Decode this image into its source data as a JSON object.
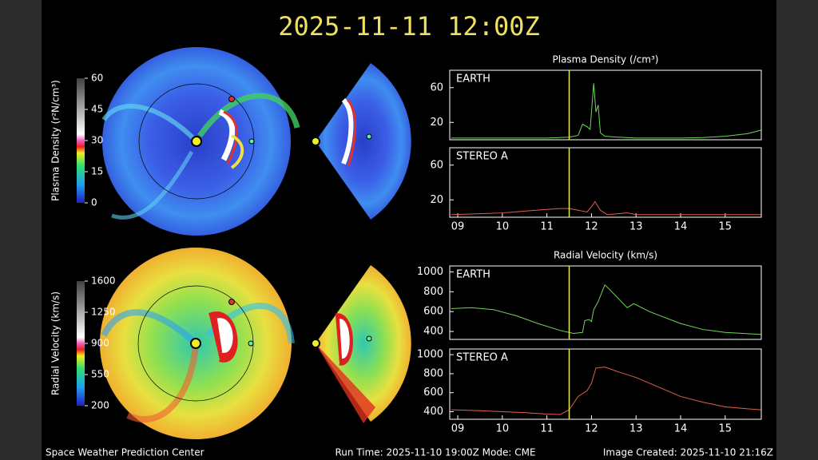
{
  "title": "2025-11-11 12:00Z",
  "footer": {
    "left": "Space Weather Prediction Center",
    "center": "Run Time: 2025-11-10 19:00Z  Mode: CME",
    "right": "Image Created: 2025-11-10 21:16Z"
  },
  "colorbars": [
    {
      "label": "Plasma Density (r²N/cm³)",
      "lim": [
        0,
        60
      ],
      "ticks": [
        0,
        15,
        30,
        45,
        60
      ]
    },
    {
      "label": "Radial Velocity (km/s)",
      "lim": [
        200,
        1600
      ],
      "ticks": [
        200,
        550,
        900,
        1250,
        1600
      ]
    }
  ],
  "chart_data": [
    {
      "type": "line",
      "title": "Plasma Density (/cm³)",
      "xlim": [
        8.82,
        15.81
      ],
      "ylim": [
        0,
        80
      ],
      "yticks": [
        20,
        60
      ],
      "marker_x": 11.5,
      "marker_color": "#e8e84a",
      "series": [
        {
          "name": "EARTH",
          "color": "#6fd65a",
          "x": [
            8.85,
            9.5,
            10,
            10.5,
            11,
            11.5,
            11.7,
            11.8,
            11.9,
            11.97,
            12.05,
            12.1,
            12.15,
            12.2,
            12.3,
            12.6,
            13,
            13.5,
            14,
            14.5,
            15,
            15.5,
            15.8
          ],
          "values": [
            2,
            2,
            2,
            2,
            2,
            3,
            5,
            18,
            15,
            12,
            65,
            32,
            40,
            8,
            4,
            3,
            2,
            2,
            2,
            2.5,
            4,
            7,
            11
          ]
        }
      ]
    },
    {
      "type": "line",
      "xlim": [
        8.82,
        15.81
      ],
      "ylim": [
        0,
        80
      ],
      "yticks": [
        20,
        60
      ],
      "xticks": [
        {
          "value": 9,
          "label": "09"
        },
        10,
        11,
        12,
        13,
        14,
        15
      ],
      "marker_x": 11.5,
      "marker_color": "#e8e84a",
      "series": [
        {
          "name": "STEREO A",
          "color": "#e0604e",
          "x": [
            8.85,
            9.5,
            10,
            10.5,
            11,
            11.3,
            11.5,
            11.7,
            11.9,
            12.0,
            12.08,
            12.2,
            12.35,
            12.6,
            12.8,
            13.0,
            14,
            15,
            15.8
          ],
          "values": [
            3,
            4,
            5,
            7,
            9,
            10,
            10,
            8,
            6,
            12,
            18,
            8,
            3,
            4,
            5,
            3,
            3,
            3,
            3
          ]
        }
      ]
    },
    {
      "type": "line",
      "title": "Radial Velocity (km/s)",
      "xlim": [
        8.82,
        15.81
      ],
      "ylim": [
        320,
        1060
      ],
      "yticks": [
        400,
        600,
        800,
        1000
      ],
      "marker_x": 11.5,
      "marker_color": "#e8e84a",
      "series": [
        {
          "name": "EARTH",
          "color": "#6fd65a",
          "x": [
            8.85,
            9.3,
            9.8,
            10.3,
            10.8,
            11.3,
            11.6,
            11.8,
            11.85,
            11.95,
            12.0,
            12.05,
            12.15,
            12.3,
            12.5,
            12.8,
            12.95,
            13.3,
            14,
            14.5,
            15,
            15.8
          ],
          "values": [
            630,
            640,
            620,
            560,
            480,
            410,
            380,
            390,
            510,
            520,
            500,
            620,
            700,
            870,
            780,
            640,
            680,
            600,
            480,
            420,
            390,
            370
          ]
        }
      ]
    },
    {
      "type": "line",
      "xlim": [
        8.82,
        15.81
      ],
      "ylim": [
        320,
        1060
      ],
      "yticks": [
        400,
        600,
        800,
        1000
      ],
      "xticks": [
        {
          "value": 9,
          "label": "09"
        },
        10,
        11,
        12,
        13,
        14,
        15
      ],
      "marker_x": 11.5,
      "marker_color": "#e8e84a",
      "series": [
        {
          "name": "STEREO A",
          "color": "#e0604e",
          "x": [
            8.85,
            9.5,
            10,
            10.5,
            11,
            11.3,
            11.5,
            11.7,
            11.9,
            12.0,
            12.1,
            12.3,
            12.6,
            13,
            13.5,
            14,
            14.5,
            15,
            15.5,
            15.8
          ],
          "values": [
            420,
            410,
            400,
            390,
            375,
            370,
            420,
            560,
            620,
            700,
            860,
            870,
            820,
            760,
            660,
            560,
            500,
            450,
            430,
            420
          ]
        }
      ]
    }
  ]
}
